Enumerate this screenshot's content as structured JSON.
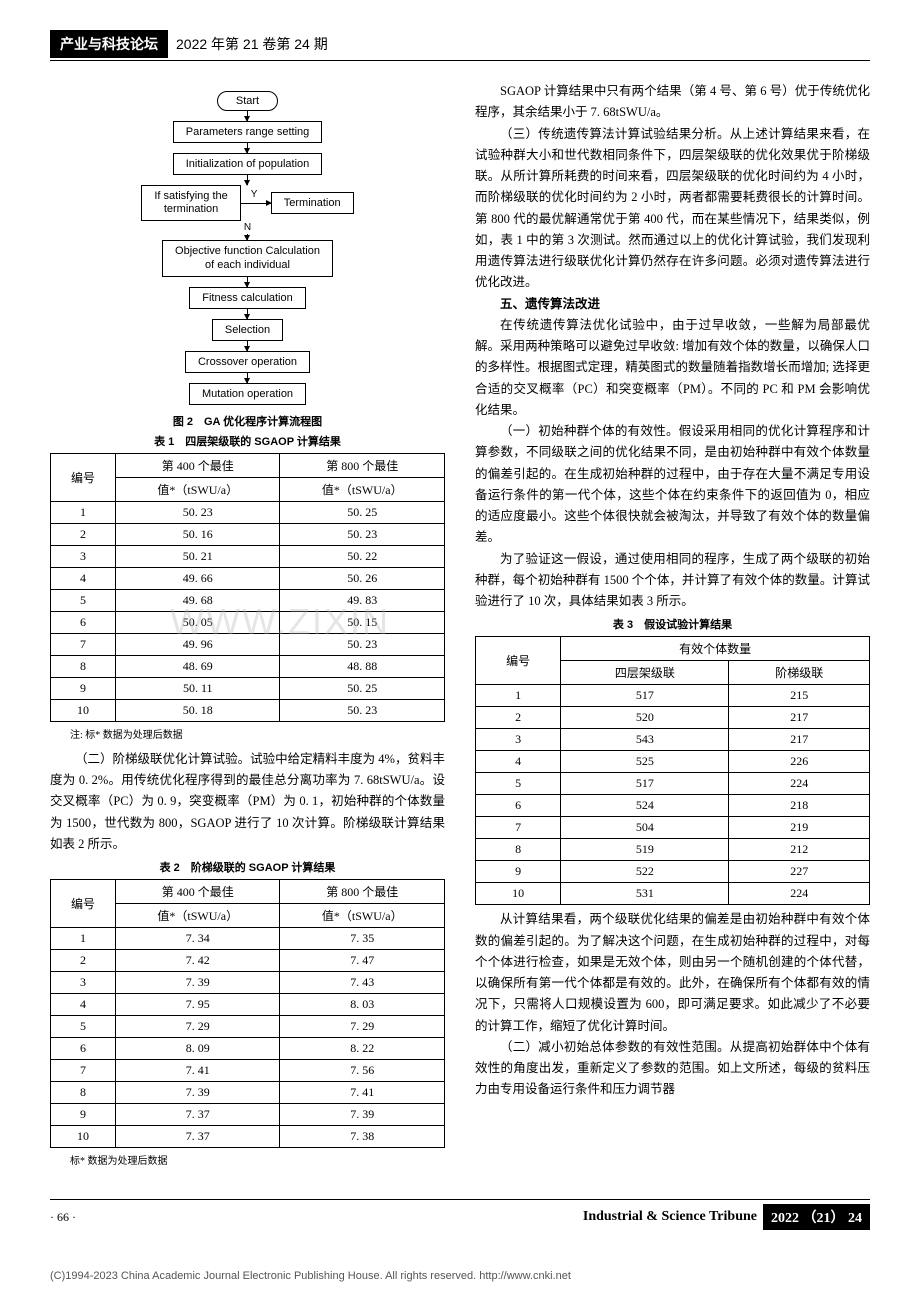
{
  "header": {
    "black": "产业与科技论坛",
    "rest": "2022 年第 21 卷第 24 期"
  },
  "flowchart": {
    "start": "Start",
    "p1": "Parameters range setting",
    "p2": "Initialization of population",
    "cond": "If satisfying the\ntermination",
    "term": "Termination",
    "y": "Y",
    "n": "N",
    "p3": "Objective function Calculation\nof each individual",
    "p4": "Fitness calculation",
    "p5": "Selection",
    "p6": "Crossover operation",
    "p7": "Mutation operation"
  },
  "fig2_caption": "图 2　GA 优化程序计算流程图",
  "table1": {
    "caption": "表 1　四层架级联的 SGAOP 计算结果",
    "h_no": "编号",
    "h_c1a": "第 400 个最佳",
    "h_c1b": "值*（tSWU/a）",
    "h_c2a": "第 800 个最佳",
    "h_c2b": "值*（tSWU/a）",
    "rows": [
      [
        "1",
        "50. 23",
        "50. 25"
      ],
      [
        "2",
        "50. 16",
        "50. 23"
      ],
      [
        "3",
        "50. 21",
        "50. 22"
      ],
      [
        "4",
        "49. 66",
        "50. 26"
      ],
      [
        "5",
        "49. 68",
        "49. 83"
      ],
      [
        "6",
        "50. 05",
        "50. 15"
      ],
      [
        "7",
        "49. 96",
        "50. 23"
      ],
      [
        "8",
        "48. 69",
        "48. 88"
      ],
      [
        "9",
        "50. 11",
        "50. 25"
      ],
      [
        "10",
        "50. 18",
        "50. 23"
      ]
    ],
    "note": "注: 标* 数据为处理后数据"
  },
  "para1": "（二）阶梯级联优化计算试验。试验中给定精料丰度为 4%，贫料丰度为 0. 2%。用传统优化程序得到的最佳总分离功率为 7. 68tSWU/a。设交叉概率（PC）为 0. 9，突变概率（PM）为 0. 1，初始种群的个体数量为 1500，世代数为 800，SGAOP 进行了 10 次计算。阶梯级联计算结果如表 2 所示。",
  "table2": {
    "caption": "表 2　阶梯级联的 SGAOP 计算结果",
    "rows": [
      [
        "1",
        "7. 34",
        "7. 35"
      ],
      [
        "2",
        "7. 42",
        "7. 47"
      ],
      [
        "3",
        "7. 39",
        "7. 43"
      ],
      [
        "4",
        "7. 95",
        "8. 03"
      ],
      [
        "5",
        "7. 29",
        "7. 29"
      ],
      [
        "6",
        "8. 09",
        "8. 22"
      ],
      [
        "7",
        "7. 41",
        "7. 56"
      ],
      [
        "8",
        "7. 39",
        "7. 41"
      ],
      [
        "9",
        "7. 37",
        "7. 39"
      ],
      [
        "10",
        "7. 37",
        "7. 38"
      ]
    ],
    "note": "标* 数据为处理后数据"
  },
  "right": {
    "p1": "SGAOP 计算结果中只有两个结果（第 4 号、第 6 号）优于传统优化程序，其余结果小于 7. 68tSWU/a。",
    "p2": "（三）传统遗传算法计算试验结果分析。从上述计算结果来看，在试验种群大小和世代数相同条件下，四层架级联的优化效果优于阶梯级联。从所计算所耗费的时间来看，四层架级联的优化时间约为 4 小时，而阶梯级联的优化时间约为 2 小时，两者都需要耗费很长的计算时间。第 800 代的最优解通常优于第 400 代，而在某些情况下，结果类似，例如，表 1 中的第 3 次测试。然而通过以上的优化计算试验，我们发现利用遗传算法进行级联优化计算仍然存在许多问题。必须对遗传算法进行优化改进。",
    "h5": "五、遗传算法改进",
    "p3": "在传统遗传算法优化试验中，由于过早收敛，一些解为局部最优解。采用两种策略可以避免过早收敛: 增加有效个体的数量，以确保人口的多样性。根据图式定理，精英图式的数量随着指数增长而增加; 选择更合适的交叉概率（PC）和突变概率（PM）。不同的 PC 和 PM 会影响优化结果。",
    "p4": "（一）初始种群个体的有效性。假设采用相同的优化计算程序和计算参数，不同级联之间的优化结果不同，是由初始种群中有效个体数量的偏差引起的。在生成初始种群的过程中，由于存在大量不满足专用设备运行条件的第一代个体，这些个体在约束条件下的返回值为 0，相应的适应度最小。这些个体很快就会被淘汰，并导致了有效个体的数量偏差。",
    "p5": "为了验证这一假设，通过使用相同的程序，生成了两个级联的初始种群，每个初始种群有 1500 个个体，并计算了有效个体的数量。计算试验进行了 10 次，具体结果如表 3 所示。"
  },
  "table3": {
    "caption": "表 3　假设试验计算结果",
    "h_no": "编号",
    "h_top": "有效个体数量",
    "h_c1": "四层架级联",
    "h_c2": "阶梯级联",
    "rows": [
      [
        "1",
        "517",
        "215"
      ],
      [
        "2",
        "520",
        "217"
      ],
      [
        "3",
        "543",
        "217"
      ],
      [
        "4",
        "525",
        "226"
      ],
      [
        "5",
        "517",
        "224"
      ],
      [
        "6",
        "524",
        "218"
      ],
      [
        "7",
        "504",
        "219"
      ],
      [
        "8",
        "519",
        "212"
      ],
      [
        "9",
        "522",
        "227"
      ],
      [
        "10",
        "531",
        "224"
      ]
    ]
  },
  "right2": {
    "p1": "从计算结果看，两个级联优化结果的偏差是由初始种群中有效个体数的偏差引起的。为了解决这个问题，在生成初始种群的过程中，对每个个体进行检查，如果是无效个体，则由另一个随机创建的个体代替，以确保所有第一代个体都是有效的。此外，在确保所有个体都有效的情况下，只需将人口规模设置为 600，即可满足要求。如此减少了不必要的计算工作，缩短了优化计算时间。",
    "p2": "（二）减小初始总体参数的有效性范围。从提高初始群体中个体有效性的角度出发，重新定义了参数的范围。如上文所述，每级的贫料压力由专用设备运行条件和压力调节器"
  },
  "footer": {
    "page": "· 66 ·",
    "right1": "Industrial & Science Tribune",
    "right2": "2022 （21） 24"
  },
  "copyright": "(C)1994-2023 China Academic Journal Electronic Publishing House. All rights reserved.    http://www.cnki.net",
  "watermark": "WWW.ZIXIN"
}
